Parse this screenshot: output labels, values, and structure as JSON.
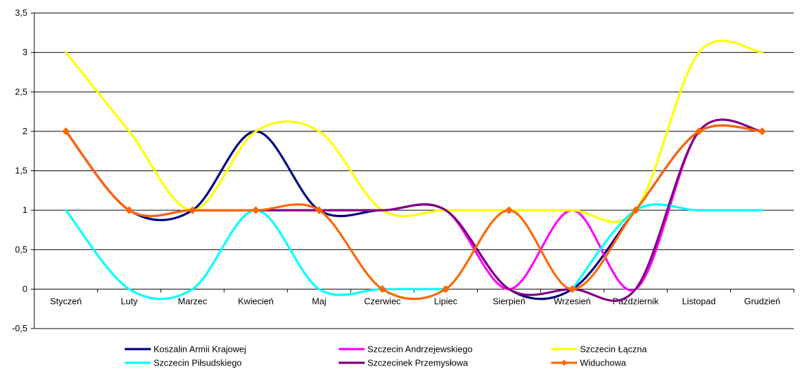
{
  "chart_data": {
    "type": "line",
    "smooth": true,
    "categories": [
      "Styczeń",
      "Luty",
      "Marzec",
      "Kwiecień",
      "Maj",
      "Czerwiec",
      "Lipiec",
      "Sierpień",
      "Wrzesień",
      "Październik",
      "Listopad",
      "Grudzień"
    ],
    "ylim": [
      -0.5,
      3.5
    ],
    "yticks": [
      -0.5,
      0,
      0.5,
      1,
      1.5,
      2,
      2.5,
      3,
      3.5
    ],
    "ytick_labels": [
      "-0,5",
      "0",
      "0,5",
      "1",
      "1,5",
      "2",
      "2,5",
      "3",
      "3,5"
    ],
    "grid": "horizontal",
    "legend_position": "bottom",
    "series": [
      {
        "name": "Koszalin Armii Krajowej",
        "color": "#000080",
        "values": [
          2,
          1,
          1,
          2,
          1,
          1,
          1,
          0,
          0,
          1,
          2,
          2
        ]
      },
      {
        "name": "Szczecin Andrzejewskiego",
        "color": "#FF00FF",
        "values": [
          2,
          1,
          1,
          1,
          1,
          1,
          1,
          0,
          1,
          0,
          2,
          2
        ]
      },
      {
        "name": "Szczecin Łączna",
        "color": "#FFFF00",
        "values": [
          3,
          2,
          1,
          2,
          2,
          1,
          1,
          1,
          1,
          1,
          3,
          3
        ]
      },
      {
        "name": "Szczecin Piłsudskiego",
        "color": "#00FFFF",
        "values": [
          1,
          0,
          0,
          1,
          0,
          0,
          0,
          null,
          0,
          1,
          1,
          1
        ]
      },
      {
        "name": "Szczecinek Przemysłowa",
        "color": "#800080",
        "values": [
          2,
          1,
          1,
          1,
          1,
          1,
          1,
          0,
          0,
          0,
          2,
          2
        ]
      },
      {
        "name": "Widuchowa",
        "color": "#FF6600",
        "marker": "diamond",
        "values": [
          2,
          1,
          1,
          1,
          1,
          0,
          0,
          1,
          0,
          1,
          2,
          2
        ]
      }
    ]
  }
}
